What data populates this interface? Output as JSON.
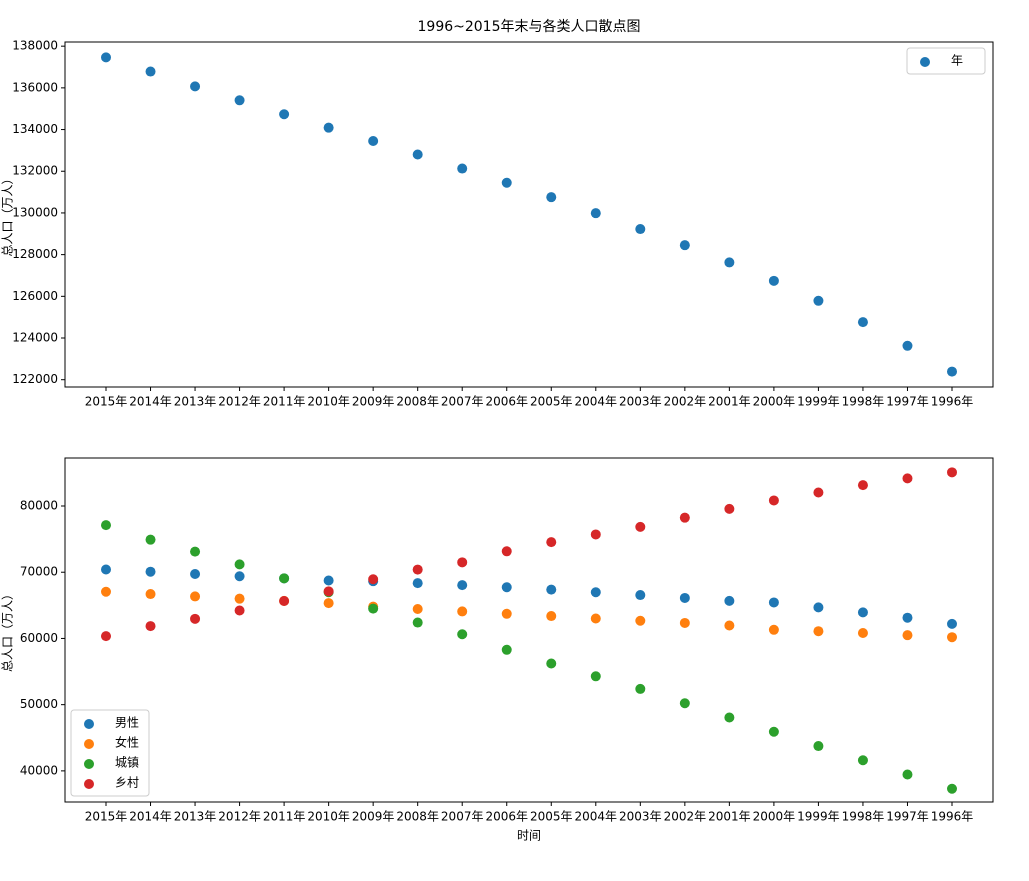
{
  "chart_data": [
    {
      "type": "scatter",
      "title": "1996~2015年末与各类人口散点图",
      "ylabel": "总人口（万人）",
      "legend": "upper right",
      "categories": [
        "2015年",
        "2014年",
        "2013年",
        "2012年",
        "2011年",
        "2010年",
        "2009年",
        "2008年",
        "2007年",
        "2006年",
        "2005年",
        "2004年",
        "2003年",
        "2002年",
        "2001年",
        "2000年",
        "1999年",
        "1998年",
        "1997年",
        "1996年"
      ],
      "series": [
        {
          "name": "年",
          "color": "#1f77b4",
          "values": [
            137462,
            136782,
            136072,
            135404,
            134735,
            134091,
            133450,
            132802,
            132129,
            131448,
            130756,
            129988,
            129227,
            128453,
            127627,
            126743,
            125786,
            124761,
            123626,
            122389
          ]
        }
      ],
      "ylim": [
        121650,
        138200
      ],
      "yticks": [
        122000,
        124000,
        126000,
        128000,
        130000,
        132000,
        134000,
        136000,
        138000
      ]
    },
    {
      "type": "scatter",
      "xlabel": "时间",
      "ylabel": "总人口（万人）",
      "legend": "lower left",
      "categories": [
        "2015年",
        "2014年",
        "2013年",
        "2012年",
        "2011年",
        "2010年",
        "2009年",
        "2008年",
        "2007年",
        "2006年",
        "2005年",
        "2004年",
        "2003年",
        "2002年",
        "2001年",
        "2000年",
        "1999年",
        "1998年",
        "1997年",
        "1996年"
      ],
      "series": [
        {
          "name": "男性",
          "color": "#1f77b4",
          "values": [
            70414,
            70079,
            69728,
            69395,
            69068,
            68748,
            68647,
            68357,
            68048,
            67728,
            67375,
            66976,
            66556,
            66115,
            65672,
            65437,
            64692,
            63940,
            63131,
            62200
          ]
        },
        {
          "name": "女性",
          "color": "#ff7f0e",
          "values": [
            67048,
            66703,
            66344,
            66009,
            65667,
            65343,
            64803,
            64445,
            64081,
            63720,
            63381,
            63012,
            62671,
            62338,
            61955,
            61306,
            61094,
            60821,
            60495,
            60189
          ]
        },
        {
          "name": "城镇",
          "color": "#2ca02c",
          "values": [
            77116,
            74916,
            73111,
            71182,
            69079,
            66978,
            64512,
            62403,
            60633,
            58288,
            56212,
            54283,
            52376,
            50212,
            48064,
            45906,
            43748,
            41608,
            39449,
            37304
          ]
        },
        {
          "name": "乡村",
          "color": "#d62728",
          "values": [
            60346,
            61866,
            62961,
            64222,
            65656,
            67113,
            68938,
            70399,
            71496,
            73160,
            74544,
            75705,
            76851,
            78241,
            79563,
            80837,
            82038,
            83153,
            84177,
            85085
          ]
        }
      ],
      "ylim": [
        35300,
        87250
      ],
      "yticks": [
        40000,
        50000,
        60000,
        70000,
        80000
      ]
    }
  ]
}
